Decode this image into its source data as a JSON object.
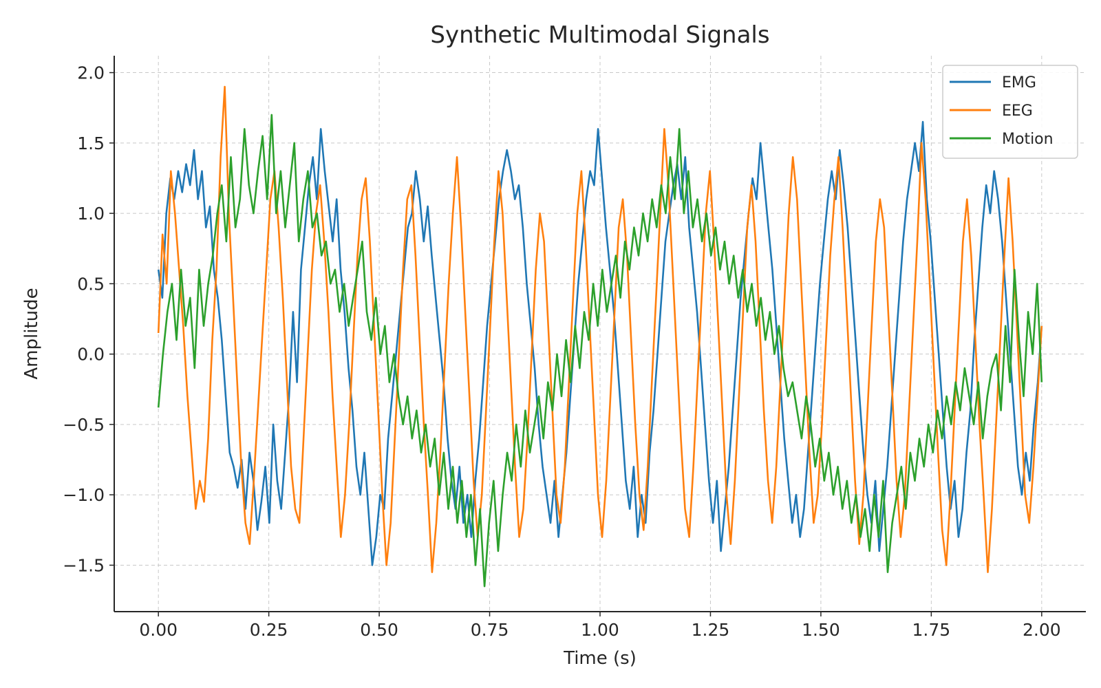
{
  "chart_data": {
    "type": "line",
    "title": "Synthetic Multimodal Signals",
    "xlabel": "Time (s)",
    "ylabel": "Amplitude",
    "xlim": [
      -0.1,
      2.1
    ],
    "ylim": [
      -1.83,
      2.12
    ],
    "xticks": [
      0.0,
      0.25,
      0.5,
      0.75,
      1.0,
      1.25,
      1.5,
      1.75,
      2.0
    ],
    "xtick_labels": [
      "0.00",
      "0.25",
      "0.50",
      "0.75",
      "1.00",
      "1.25",
      "1.50",
      "1.75",
      "2.00"
    ],
    "yticks": [
      -1.5,
      -1.0,
      -0.5,
      0.0,
      0.5,
      1.0,
      1.5,
      2.0
    ],
    "ytick_labels": [
      "−1.5",
      "−1.0",
      "−0.5",
      "0.0",
      "0.5",
      "1.0",
      "1.5",
      "2.0"
    ],
    "grid": true,
    "legend_position": "top-right",
    "x_start": 0.0,
    "x_end": 2.0,
    "series": [
      {
        "name": "EMG",
        "color": "#1f77b4",
        "values": [
          0.6,
          0.4,
          1.0,
          1.25,
          1.1,
          1.3,
          1.15,
          1.35,
          1.2,
          1.45,
          1.1,
          1.3,
          0.9,
          1.05,
          0.6,
          0.4,
          0.1,
          -0.3,
          -0.7,
          -0.8,
          -0.95,
          -0.75,
          -1.1,
          -0.7,
          -0.9,
          -1.25,
          -1.05,
          -0.8,
          -1.2,
          -0.5,
          -0.9,
          -1.1,
          -0.7,
          -0.3,
          0.3,
          -0.2,
          0.6,
          0.9,
          1.2,
          1.4,
          1.1,
          1.6,
          1.3,
          1.05,
          0.8,
          1.1,
          0.6,
          0.3,
          -0.1,
          -0.4,
          -0.8,
          -1.0,
          -0.7,
          -1.1,
          -1.5,
          -1.3,
          -1.0,
          -1.1,
          -0.6,
          -0.3,
          0.0,
          0.3,
          0.6,
          0.9,
          1.0,
          1.3,
          1.1,
          0.8,
          1.05,
          0.7,
          0.4,
          0.1,
          -0.2,
          -0.6,
          -0.9,
          -1.1,
          -0.8,
          -1.2,
          -1.0,
          -1.3,
          -0.9,
          -0.6,
          -0.2,
          0.2,
          0.5,
          0.8,
          1.1,
          1.3,
          1.45,
          1.3,
          1.1,
          1.2,
          0.9,
          0.5,
          0.2,
          -0.1,
          -0.5,
          -0.8,
          -1.0,
          -1.2,
          -0.9,
          -1.3,
          -1.0,
          -0.7,
          -0.3,
          0.1,
          0.5,
          0.8,
          1.1,
          1.3,
          1.2,
          1.6,
          1.25,
          0.9,
          0.6,
          0.3,
          -0.1,
          -0.5,
          -0.9,
          -1.1,
          -0.8,
          -1.3,
          -1.0,
          -1.2,
          -0.7,
          -0.4,
          0.0,
          0.4,
          0.8,
          1.0,
          1.2,
          1.35,
          1.1,
          1.4,
          0.9,
          0.6,
          0.3,
          -0.1,
          -0.5,
          -0.9,
          -1.2,
          -0.9,
          -1.4,
          -1.1,
          -0.8,
          -0.4,
          0.0,
          0.4,
          0.7,
          1.0,
          1.25,
          1.1,
          1.5,
          1.2,
          0.9,
          0.6,
          0.2,
          -0.2,
          -0.6,
          -0.9,
          -1.2,
          -1.0,
          -1.3,
          -1.1,
          -0.7,
          -0.3,
          0.1,
          0.5,
          0.8,
          1.1,
          1.3,
          1.1,
          1.45,
          1.2,
          0.9,
          0.5,
          0.1,
          -0.3,
          -0.7,
          -1.0,
          -1.2,
          -0.9,
          -1.4,
          -1.1,
          -0.8,
          -0.4,
          0.0,
          0.4,
          0.8,
          1.1,
          1.3,
          1.5,
          1.3,
          1.65,
          1.1,
          0.8,
          0.4,
          0.0,
          -0.4,
          -0.8,
          -1.1,
          -0.9,
          -1.3,
          -1.1,
          -0.7,
          -0.4,
          0.1,
          0.5,
          0.9,
          1.2,
          1.0,
          1.3,
          1.1,
          0.8,
          0.4,
          0.0,
          -0.4,
          -0.8,
          -1.0,
          -0.7,
          -0.9,
          -0.5,
          -0.2,
          0.2
        ]
      },
      {
        "name": "EEG",
        "color": "#ff7f0e",
        "values": [
          0.15,
          0.85,
          0.5,
          1.3,
          1.0,
          0.6,
          0.2,
          -0.3,
          -0.7,
          -1.1,
          -0.9,
          -1.05,
          -0.6,
          0.1,
          0.6,
          1.4,
          1.9,
          1.0,
          0.4,
          -0.2,
          -0.8,
          -1.2,
          -1.35,
          -0.9,
          -0.4,
          0.1,
          0.6,
          1.1,
          1.3,
          0.9,
          0.4,
          -0.2,
          -0.8,
          -1.1,
          -1.2,
          -0.6,
          0.0,
          0.6,
          1.0,
          1.2,
          0.8,
          0.3,
          -0.3,
          -0.8,
          -1.3,
          -1.0,
          -0.5,
          0.1,
          0.7,
          1.1,
          1.25,
          0.8,
          0.2,
          -0.4,
          -1.0,
          -1.5,
          -1.2,
          -0.6,
          0.0,
          0.6,
          1.1,
          1.2,
          0.7,
          0.1,
          -0.5,
          -1.0,
          -1.55,
          -1.2,
          -0.7,
          -0.1,
          0.5,
          1.0,
          1.4,
          0.9,
          0.3,
          -0.3,
          -0.9,
          -1.3,
          -1.0,
          -0.4,
          0.2,
          0.8,
          1.3,
          1.0,
          0.4,
          -0.2,
          -0.8,
          -1.3,
          -1.1,
          -0.6,
          0.0,
          0.6,
          1.0,
          0.8,
          0.2,
          -0.4,
          -1.0,
          -1.2,
          -0.8,
          -0.2,
          0.4,
          1.0,
          1.3,
          0.8,
          0.2,
          -0.4,
          -1.0,
          -1.3,
          -0.9,
          -0.3,
          0.3,
          0.9,
          1.1,
          0.7,
          0.1,
          -0.5,
          -1.0,
          -1.25,
          -0.8,
          -0.2,
          0.4,
          1.0,
          1.6,
          1.2,
          0.6,
          0.0,
          -0.6,
          -1.1,
          -1.3,
          -0.8,
          -0.2,
          0.4,
          1.0,
          1.3,
          0.8,
          0.2,
          -0.4,
          -1.0,
          -1.35,
          -0.9,
          -0.3,
          0.3,
          0.9,
          1.2,
          0.8,
          0.2,
          -0.4,
          -0.9,
          -1.2,
          -0.8,
          -0.2,
          0.4,
          1.0,
          1.4,
          1.1,
          0.5,
          -0.1,
          -0.7,
          -1.2,
          -1.0,
          -0.5,
          0.1,
          0.7,
          1.1,
          1.4,
          0.9,
          0.3,
          -0.3,
          -0.9,
          -1.35,
          -1.0,
          -0.4,
          0.2,
          0.8,
          1.1,
          0.9,
          0.3,
          -0.3,
          -0.9,
          -1.3,
          -1.0,
          -0.4,
          0.2,
          0.8,
          1.5,
          1.1,
          0.5,
          -0.1,
          -0.7,
          -1.25,
          -1.5,
          -1.0,
          -0.4,
          0.2,
          0.8,
          1.1,
          0.7,
          0.1,
          -0.5,
          -1.0,
          -1.55,
          -1.1,
          -0.5,
          0.1,
          0.7,
          1.25,
          0.8,
          0.2,
          -0.4,
          -1.0,
          -1.2,
          -0.8,
          -0.3,
          0.2
        ]
      },
      {
        "name": "Motion",
        "color": "#2ca02c",
        "values": [
          -0.38,
          0.0,
          0.3,
          0.5,
          0.1,
          0.6,
          0.2,
          0.4,
          -0.1,
          0.6,
          0.2,
          0.5,
          0.7,
          1.0,
          1.2,
          0.8,
          1.4,
          0.9,
          1.1,
          1.6,
          1.2,
          1.0,
          1.3,
          1.55,
          1.1,
          1.7,
          1.0,
          1.3,
          0.9,
          1.2,
          1.5,
          0.8,
          1.1,
          1.3,
          0.9,
          1.0,
          0.7,
          0.8,
          0.5,
          0.6,
          0.3,
          0.5,
          0.2,
          0.4,
          0.6,
          0.8,
          0.3,
          0.1,
          0.4,
          0.0,
          0.2,
          -0.2,
          0.0,
          -0.3,
          -0.5,
          -0.3,
          -0.6,
          -0.4,
          -0.7,
          -0.5,
          -0.8,
          -0.6,
          -1.0,
          -0.7,
          -1.1,
          -0.8,
          -1.2,
          -0.9,
          -1.3,
          -1.0,
          -1.5,
          -1.1,
          -1.65,
          -1.2,
          -0.9,
          -1.4,
          -1.0,
          -0.7,
          -0.9,
          -0.5,
          -0.8,
          -0.4,
          -0.7,
          -0.5,
          -0.3,
          -0.6,
          -0.2,
          -0.4,
          0.0,
          -0.3,
          0.1,
          -0.2,
          0.2,
          -0.1,
          0.3,
          0.1,
          0.5,
          0.2,
          0.6,
          0.3,
          0.5,
          0.7,
          0.4,
          0.8,
          0.6,
          0.9,
          0.7,
          1.0,
          0.8,
          1.1,
          0.9,
          1.2,
          1.0,
          1.4,
          1.1,
          1.6,
          1.0,
          1.3,
          0.9,
          1.1,
          0.8,
          1.0,
          0.7,
          0.9,
          0.6,
          0.8,
          0.5,
          0.7,
          0.4,
          0.6,
          0.3,
          0.5,
          0.2,
          0.4,
          0.1,
          0.3,
          0.0,
          0.2,
          -0.1,
          -0.3,
          -0.2,
          -0.4,
          -0.6,
          -0.3,
          -0.5,
          -0.8,
          -0.6,
          -0.9,
          -0.7,
          -1.0,
          -0.8,
          -1.1,
          -0.9,
          -1.2,
          -1.0,
          -1.3,
          -1.1,
          -1.4,
          -1.0,
          -1.3,
          -0.9,
          -1.55,
          -1.2,
          -1.0,
          -0.8,
          -1.1,
          -0.7,
          -0.9,
          -0.6,
          -0.8,
          -0.5,
          -0.7,
          -0.4,
          -0.6,
          -0.3,
          -0.5,
          -0.2,
          -0.4,
          -0.1,
          -0.3,
          -0.5,
          -0.2,
          -0.6,
          -0.3,
          -0.1,
          0.0,
          -0.4,
          0.2,
          -0.2,
          0.6,
          0.1,
          -0.3,
          0.3,
          0.0,
          0.5,
          -0.2
        ]
      }
    ]
  }
}
